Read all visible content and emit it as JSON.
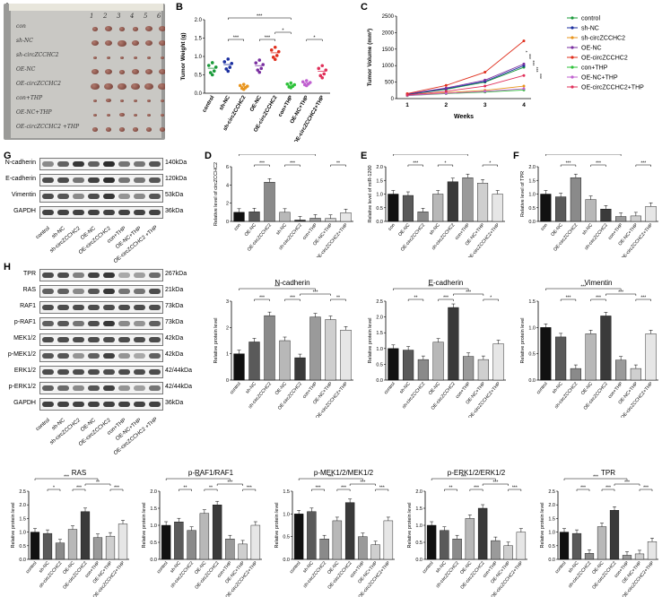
{
  "panels": {
    "A": "A",
    "B": "B",
    "C": "C",
    "D": "D",
    "E": "E",
    "F": "F",
    "G": "G",
    "H": "H"
  },
  "photo": {
    "col_numbers": [
      "1",
      "2",
      "3",
      "4",
      "5",
      "6"
    ],
    "groups": [
      "con",
      "sh-NC",
      "sh-circZCCHC2",
      "OE-NC",
      "OE-circZCCHC2",
      "con+THP",
      "OE-NC+THP",
      "OE-circZCCHC2 +THP"
    ]
  },
  "groups8": [
    "control",
    "sh-NC",
    "sh-circZCCHC2",
    "OE-NC",
    "OE-circZCCHC2",
    "con+THP",
    "OE-NC+THP",
    "OE-circZCCHC2+THP"
  ],
  "groups_qpcr": [
    "con",
    "OE-NC",
    "OE-circZCCHC2",
    "sh-NC",
    "sh-circZCCHC2",
    "con+THP",
    "OE-NC+THP",
    "OE-circZCCHC2+THP"
  ],
  "blot_lane_labels": [
    "control",
    "sh-NC",
    "sh-circZCCHC2",
    "OE-NC",
    "OE-circZCCHC2",
    "con+THP",
    "OE-NC+THP",
    "OE-circZCCHC2 +THP"
  ],
  "blotG": {
    "rows": [
      {
        "name": "N-cadherin",
        "kda": "140kDa"
      },
      {
        "name": "E-cadherin",
        "kda": "120kDa"
      },
      {
        "name": "Vimentin",
        "kda": "53kDa"
      },
      {
        "name": "GAPDH",
        "kda": "36kDa"
      }
    ]
  },
  "blotH": {
    "rows": [
      {
        "name": "TPR",
        "kda": "267kDa"
      },
      {
        "name": "RAS",
        "kda": "21kDa"
      },
      {
        "name": "RAF1",
        "kda": "73kDa"
      },
      {
        "name": "p-RAF1",
        "kda": "73kDa"
      },
      {
        "name": "MEK1/2",
        "kda": "42kDa"
      },
      {
        "name": "p-MEK1/2",
        "kda": "42kDa"
      },
      {
        "name": "ERK1/2",
        "kda": "42/44kDa"
      },
      {
        "name": "p-ERK1/2",
        "kda": "42/44kDa"
      },
      {
        "name": "GAPDH",
        "kda": "36kDa"
      }
    ]
  },
  "colors": {
    "gray_levels": [
      "#111111",
      "#5a5a5a",
      "#8a8a8a",
      "#b8b8b8",
      "#3a3a3a",
      "#9a9a9a",
      "#cfcfcf",
      "#e6e6e6"
    ]
  },
  "chart_data": [
    {
      "id": "B",
      "type": "scatter",
      "title": "",
      "ylabel": "Tumor Weight (g)",
      "ylim": [
        0,
        2.0
      ],
      "yticks": [
        "0.0",
        "0.5",
        "1.0",
        "1.5",
        "2.0"
      ],
      "categories": [
        "control",
        "sh-NC",
        "sh-circZCCHC2",
        "OE-NC",
        "OE-circZCCHC2",
        "con+THP",
        "OE-NC+THP",
        "OE-circZCCHC2+THP"
      ],
      "values": [
        0.68,
        0.78,
        0.18,
        0.75,
        1.1,
        0.22,
        0.28,
        0.6
      ],
      "colors": [
        "#1a9a3a",
        "#1b2fa0",
        "#e8941c",
        "#7a2fa0",
        "#e0301e",
        "#2ec23a",
        "#c060d0",
        "#e0305a"
      ],
      "sig": [
        "***",
        "*",
        "***",
        "***",
        "*"
      ]
    },
    {
      "id": "C",
      "type": "line",
      "xlabel": "Weeks",
      "ylabel": "Tumor Volume (mm³)",
      "ylim": [
        0,
        2500
      ],
      "yticks": [
        "0",
        "500",
        "1000",
        "1500",
        "2000",
        "2500"
      ],
      "x": [
        "1",
        "2",
        "3",
        "4"
      ],
      "series": [
        {
          "name": "control",
          "values": [
            120,
            280,
            500,
            950
          ],
          "color": "#1a9a3a"
        },
        {
          "name": "sh-NC",
          "values": [
            130,
            300,
            520,
            1000
          ],
          "color": "#1b2fa0"
        },
        {
          "name": "sh-circZCCHC2",
          "values": [
            100,
            180,
            250,
            380
          ],
          "color": "#e8941c"
        },
        {
          "name": "OE-NC",
          "values": [
            140,
            320,
            560,
            1050
          ],
          "color": "#7a2fa0"
        },
        {
          "name": "OE-circZCCHC2",
          "values": [
            150,
            400,
            800,
            1750
          ],
          "color": "#e0301e"
        },
        {
          "name": "con+THP",
          "values": [
            90,
            150,
            200,
            260
          ],
          "color": "#2ec23a"
        },
        {
          "name": "OE-NC+THP",
          "values": [
            95,
            160,
            220,
            300
          ],
          "color": "#c060d0"
        },
        {
          "name": "OE-circZCCHC2+THP",
          "values": [
            110,
            220,
            380,
            700
          ],
          "color": "#e0305a"
        }
      ],
      "sig": [
        "*",
        "***",
        "***",
        "***",
        "***"
      ]
    },
    {
      "id": "D",
      "type": "bar",
      "ylabel": "Relative level of circZCCHC2",
      "ylim": [
        0,
        6
      ],
      "yticks": [
        "0",
        "2",
        "4",
        "6"
      ],
      "categories": [
        "con",
        "OE-NC",
        "OE-circZCCHC2",
        "sh-NC",
        "sh-circZCCHC2",
        "con+THP",
        "OE-NC+THP",
        "OE-circZCCHC2+THP"
      ],
      "values": [
        1.0,
        1.05,
        4.3,
        1.0,
        0.15,
        0.35,
        0.32,
        0.95
      ],
      "sig": [
        "***",
        "***",
        "*",
        "*",
        "**"
      ]
    },
    {
      "id": "E",
      "type": "bar",
      "ylabel": "Relative level of miR-1200",
      "ylim": [
        0,
        2.0
      ],
      "yticks": [
        "0.0",
        "0.5",
        "1.0",
        "1.5",
        "2.0"
      ],
      "categories": [
        "con",
        "OE-NC",
        "OE-circZCCHC2",
        "sh-NC",
        "sh-circZCCHC2",
        "con+THP",
        "OE-NC+THP",
        "OE-circZCCHC2+THP"
      ],
      "values": [
        1.0,
        0.95,
        0.35,
        1.0,
        1.45,
        1.6,
        1.4,
        1.0
      ],
      "sig": [
        "***",
        "*",
        "***",
        "*",
        "*"
      ]
    },
    {
      "id": "F",
      "type": "bar",
      "ylabel": "Relative level of TPR",
      "ylim": [
        0,
        2.0
      ],
      "yticks": [
        "0.0",
        "0.5",
        "1.0",
        "1.5",
        "2.0"
      ],
      "categories": [
        "con",
        "OE-NC",
        "OE-circZCCHC2",
        "sh-NC",
        "sh-circZCCHC2",
        "con+THP",
        "OE-NC+THP",
        "OE-circZCCHC2+THP"
      ],
      "values": [
        1.0,
        0.9,
        1.6,
        0.8,
        0.45,
        0.18,
        0.2,
        0.55
      ],
      "sig": [
        "***",
        "***",
        "*",
        "*",
        "***"
      ]
    },
    {
      "id": "N-cadherin",
      "type": "bar",
      "title": "N-cadherin",
      "ylabel": "Relative  protein level",
      "ylim": [
        0,
        3
      ],
      "yticks": [
        "0",
        "1",
        "2",
        "3"
      ],
      "categories": [
        "control",
        "sh-NC",
        "sh-circZCCHC2",
        "OE-NC",
        "OE-circZCCHC2",
        "con+THP",
        "OE-NC+THP",
        "OE-circZCCHC2+THP"
      ],
      "values": [
        1.0,
        1.45,
        2.45,
        1.5,
        0.85,
        2.4,
        2.3,
        1.9
      ],
      "sig": [
        "***",
        "***",
        "***",
        "***",
        "**"
      ]
    },
    {
      "id": "E-cadherin",
      "type": "bar",
      "title": "E-cadherin",
      "ylabel": "Relative  protein level",
      "ylim": [
        0,
        2.5
      ],
      "yticks": [
        "0.0",
        "0.5",
        "1.0",
        "1.5",
        "2.0",
        "2.5"
      ],
      "categories": [
        "control",
        "sh-NC",
        "sh-circZCCHC2",
        "OE-NC",
        "OE-circZCCHC2",
        "con+THP",
        "OE-NC+THP",
        "OE-circZCCHC2+THP"
      ],
      "values": [
        1.0,
        0.95,
        0.65,
        1.2,
        2.3,
        0.75,
        0.65,
        1.15
      ],
      "sig": [
        "**",
        "***",
        "***",
        "***",
        "*"
      ]
    },
    {
      "id": "Vimentin",
      "type": "bar",
      "title": "Vimentin",
      "ylabel": "Relative protein level",
      "ylim": [
        0,
        1.5
      ],
      "yticks": [
        "0.0",
        "0.5",
        "1.0",
        "1.5"
      ],
      "categories": [
        "control",
        "sh-NC",
        "sh-circZCCHC2",
        "OE-NC",
        "OE-circZCCHC2",
        "con+THP",
        "OE-NC+THP",
        "OE-circZCCHC2+THP"
      ],
      "values": [
        1.0,
        0.82,
        0.22,
        0.88,
        1.22,
        0.38,
        0.22,
        0.88
      ],
      "sig": [
        "***",
        "***",
        "***",
        "***",
        "***"
      ]
    },
    {
      "id": "RAS",
      "type": "bar",
      "title": "RAS",
      "ylabel": "Relative  protein level",
      "ylim": [
        0,
        2.5
      ],
      "yticks": [
        "0.0",
        "0.5",
        "1.0",
        "1.5",
        "2.0",
        "2.5"
      ],
      "categories": [
        "control",
        "sh-NC",
        "sh-circZCCHC2",
        "OE-NC",
        "OE-circZCCHC2",
        "con+THP",
        "OE-NC+THP",
        "OE-circZCCHC2+THP"
      ],
      "values": [
        1.0,
        0.95,
        0.6,
        1.1,
        1.75,
        0.8,
        0.85,
        1.3
      ],
      "sig": [
        "*",
        "***",
        "***",
        "**",
        "***"
      ]
    },
    {
      "id": "p-RAF1/RAF1",
      "type": "bar",
      "title": "p-RAF1/RAF1",
      "ylabel": "Relative  protein level",
      "ylim": [
        0,
        2.0
      ],
      "yticks": [
        "0.0",
        "0.5",
        "1.0",
        "1.5",
        "2.0"
      ],
      "categories": [
        "control",
        "sh-NC",
        "sh-circZCCHC2",
        "OE-NC",
        "OE-circZCCHC2",
        "con+THP",
        "OE-NC+THP",
        "OE-circZCCHC2+THP"
      ],
      "values": [
        1.0,
        1.1,
        0.85,
        1.35,
        1.6,
        0.6,
        0.45,
        1.0
      ],
      "sig": [
        "**",
        "**",
        "***",
        "***",
        "***"
      ]
    },
    {
      "id": "p-MEK1/2/MEK1/2",
      "type": "bar",
      "title": "p-MEK1/2/MEK1/2",
      "ylabel": "Relative  protein level",
      "ylim": [
        0,
        1.5
      ],
      "yticks": [
        "0.0",
        "0.5",
        "1.0",
        "1.5"
      ],
      "categories": [
        "control",
        "sh-NC",
        "sh-circZCCHC2",
        "OE-NC",
        "OE-circZCCHC2",
        "con+THP",
        "OE-NC+THP",
        "OE-circZCCHC2+THP"
      ],
      "values": [
        1.0,
        1.05,
        0.45,
        0.85,
        1.25,
        0.5,
        0.32,
        0.85
      ],
      "sig": [
        "***",
        "***",
        "***",
        "***",
        "***"
      ]
    },
    {
      "id": "p-ERK1/2/ERK1/2",
      "type": "bar",
      "title": "p-ERK1/2/ERK1/2",
      "ylabel": "Relative protein level",
      "ylim": [
        0,
        2.0
      ],
      "yticks": [
        "0.0",
        "0.5",
        "1.0",
        "1.5",
        "2.0"
      ],
      "categories": [
        "control",
        "sh-NC",
        "sh-circZCCHC2",
        "OE-NC",
        "OE-circZCCHC2",
        "con+THP",
        "OE-NC+THP",
        "OE-circZCCHC2+THP"
      ],
      "values": [
        1.0,
        0.85,
        0.6,
        1.2,
        1.5,
        0.55,
        0.4,
        0.8
      ],
      "sig": [
        "**",
        "***",
        "***",
        "***",
        "***"
      ]
    },
    {
      "id": "TPR",
      "type": "bar",
      "title": "TPR",
      "ylabel": "Relative protein level",
      "ylim": [
        0,
        2.5
      ],
      "yticks": [
        "0.0",
        "0.5",
        "1.0",
        "1.5",
        "2.0",
        "2.5"
      ],
      "categories": [
        "control",
        "sh-NC",
        "sh-circZCCHC2",
        "OE-NC",
        "OE-circZCCHC2",
        "con+THP",
        "OE-NC+THP",
        "OE-circZCCHC2+THP"
      ],
      "values": [
        1.0,
        0.95,
        0.22,
        1.2,
        1.8,
        0.15,
        0.2,
        0.65
      ],
      "sig": [
        "***",
        "***",
        "***",
        "***",
        "***"
      ]
    }
  ]
}
